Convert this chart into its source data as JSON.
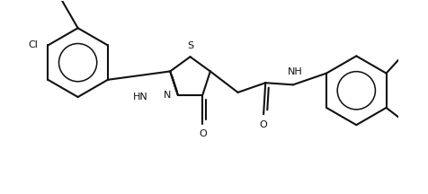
{
  "bg": "#ffffff",
  "lc": "#111111",
  "lw": 1.5,
  "fs": 8.0,
  "figsize": [
    4.76,
    2.16
  ],
  "dpi": 100,
  "xlim": [
    -0.05,
    9.55
  ],
  "ylim": [
    -1.2,
    3.8
  ]
}
